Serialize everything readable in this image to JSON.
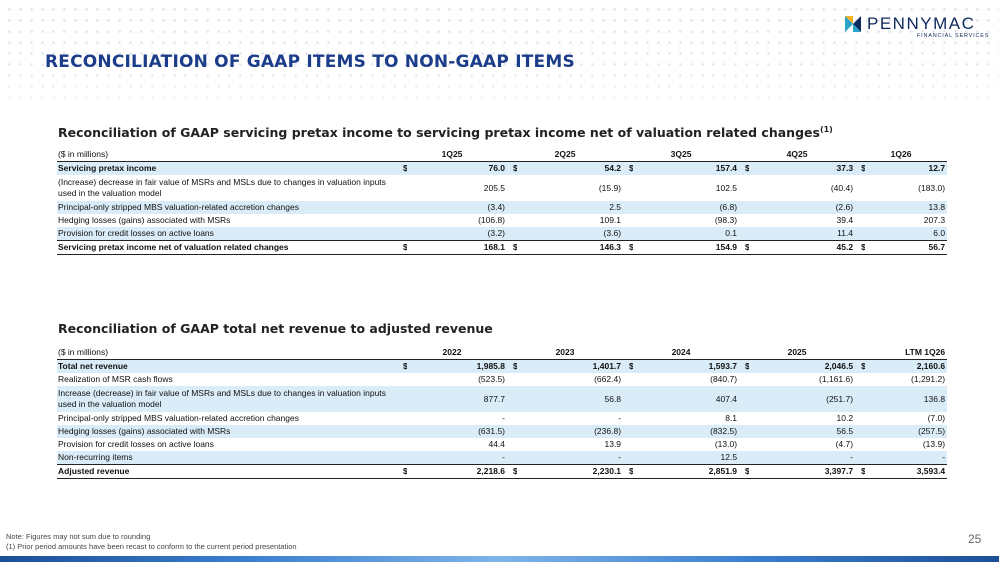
{
  "brand": {
    "name": "PENNYMAC",
    "tagline": "FINANCIAL SERVICES"
  },
  "colors": {
    "title": "#1c3d8a",
    "row_shade": "#d9ecf8",
    "logo": "#0f2a5c"
  },
  "page_title": "RECONCILIATION OF GAAP ITEMS TO NON-GAAP ITEMS",
  "table1": {
    "title": "Reconciliation of GAAP servicing pretax income to servicing pretax income net of valuation related changes",
    "title_sup": "(1)",
    "unit_label": "($ in millions)",
    "columns": [
      "1Q25",
      "2Q25",
      "3Q25",
      "4Q25",
      "1Q26"
    ],
    "rows": [
      {
        "label": "Servicing pretax income",
        "dollar": "$",
        "values": [
          "76.0",
          "54.2",
          "157.4",
          "37.3",
          "12.7"
        ]
      },
      {
        "label": "(Increase) decrease in fair value of MSRs and MSLs due to changes in valuation inputs used in the valuation model",
        "dollar": "",
        "values": [
          "205.5",
          "(15.9)",
          "102.5",
          "(40.4)",
          "(183.0)"
        ]
      },
      {
        "label": "Principal-only stripped MBS valuation-related accretion changes",
        "dollar": "",
        "values": [
          "(3.4)",
          "2.5",
          "(6.8)",
          "(2.6)",
          "13.8"
        ]
      },
      {
        "label": "Hedging losses (gains) associated with MSRs",
        "dollar": "",
        "values": [
          "(106.8)",
          "109.1",
          "(98.3)",
          "39.4",
          "207.3"
        ]
      },
      {
        "label": "Provision for credit losses on active loans",
        "dollar": "",
        "values": [
          "(3.2)",
          "(3.6)",
          "0.1",
          "11.4",
          "6.0"
        ]
      },
      {
        "label": "Servicing pretax income net of valuation related changes",
        "dollar": "$",
        "values": [
          "168.1",
          "146.3",
          "154.9",
          "45.2",
          "56.7"
        ]
      }
    ]
  },
  "table2": {
    "title": "Reconciliation of GAAP total net revenue to adjusted revenue",
    "unit_label": "($ in millions)",
    "columns": [
      "2022",
      "2023",
      "2024",
      "2025",
      "LTM 1Q26"
    ],
    "rows": [
      {
        "label": "Total net revenue",
        "dollar": "$",
        "values": [
          "1,985.8",
          "1,401.7",
          "1,593.7",
          "2,046.5",
          "2,160.6"
        ]
      },
      {
        "label": "Realization of MSR cash flows",
        "dollar": "",
        "values": [
          "(523.5)",
          "(662.4)",
          "(840.7)",
          "(1,161.6)",
          "(1,291.2)"
        ]
      },
      {
        "label": "Increase (decrease) in fair value of MSRs and MSLs due to changes in valuation inputs used in the valuation model",
        "dollar": "",
        "values": [
          "877.7",
          "56.8",
          "407.4",
          "(251.7)",
          "136.8"
        ]
      },
      {
        "label": "Principal-only stripped MBS valuation-related accretion changes",
        "dollar": "",
        "values": [
          "-",
          "-",
          "8.1",
          "10.2",
          "(7.0)"
        ]
      },
      {
        "label": "Hedging losses (gains) associated with MSRs",
        "dollar": "",
        "values": [
          "(631.5)",
          "(236.8)",
          "(832.5)",
          "56.5",
          "(257.5)"
        ]
      },
      {
        "label": "Provision for credit losses on active loans",
        "dollar": "",
        "values": [
          "44.4",
          "13.9",
          "(13.0)",
          "(4.7)",
          "(13.9)"
        ]
      },
      {
        "label": "Non-recurring items",
        "dollar": "",
        "values": [
          "-",
          "-",
          "12.5",
          "-",
          "-"
        ]
      },
      {
        "label": "Adjusted revenue",
        "dollar": "$",
        "values": [
          "2,218.6",
          "2,230.1",
          "2,851.9",
          "3,397.7",
          "3,593.4"
        ]
      }
    ]
  },
  "footnotes": {
    "note1": "Note: Figures may not sum due to rounding",
    "note2": "(1) Prior period amounts have been recast to conform to the current period presentation"
  },
  "page_number": "25"
}
